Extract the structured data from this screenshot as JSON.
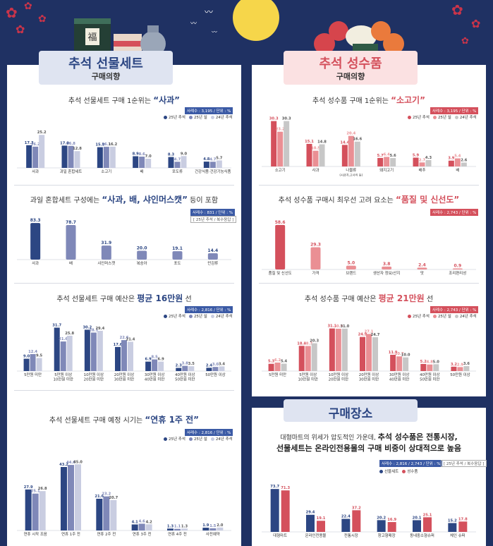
{
  "colors": {
    "navy": "#2c4683",
    "mid": "#7f88b8",
    "light": "#c9cde1",
    "red": "#d4505c",
    "pink": "#ea8f94",
    "lightgray": "#c7c7c7",
    "badge_blue": "#3b5aa5",
    "badge_red": "#d4505c"
  },
  "headers": {
    "gift": {
      "title_a": "추석",
      "title_b": "선물세트",
      "sub": "구매의향"
    },
    "goods": {
      "title_a": "추석",
      "title_b": "성수품",
      "sub": "구매의향"
    },
    "place": {
      "title": "구매장소"
    }
  },
  "sections": {
    "s1": {
      "pre": "추석 선물세트 구매 1순위는 ",
      "hi": "“사과”",
      "post": "",
      "meta": "사례수 : 3,195 / 단위 : %"
    },
    "s2": {
      "pre": "과일 혼합세트 구성에는 ",
      "hi": "“사과, 배, 샤인머스캣”",
      "post": " 등이 포함",
      "meta": "사례수 : 831 / 단위 : %",
      "note": "[ 25년 추석 / 복수응답 ]"
    },
    "s3": {
      "pre": "추석 선물세트 구매 예산은 ",
      "hi": "평균 16만원",
      "post": " 선",
      "meta": "사례수 : 2,816 / 단위 : %"
    },
    "s4": {
      "pre": "추석 선물세트 구매 예정 시기는 ",
      "hi": "“연휴 1주 전”",
      "post": "",
      "meta": "사례수 : 2,816 / 단위 : %"
    },
    "r1": {
      "pre": "추석 성수품 구매 1순위는 ",
      "hi": "“소고기”",
      "post": "",
      "meta": "사례수 : 3,195 / 단위 : %"
    },
    "r2": {
      "pre": "추석 성수품 구매시 최우선 고려 요소는 ",
      "hi": "“품질 및 신선도”",
      "post": "",
      "meta": "사례수 : 2,743 / 단위 : %"
    },
    "r3": {
      "pre": "추석 성수품 구매 예산은 ",
      "hi": "평균 21만원",
      "post": " 선",
      "meta": "사례수 : 2,743 / 단위 : %"
    },
    "p1": {
      "line1_pre": "대형마트의 위세가 압도적인 가운데, ",
      "line1_hi": "추석 성수품은 전통시장,",
      "line2": "선물세트는 온라인전용몰의 구매 비중이 상대적으로 높음",
      "meta": "사례수 : 2,816 / 2,743 / 단위 : %",
      "note": "[ 25년 추석 / 복수응답 ]"
    }
  },
  "legends": {
    "three": [
      "25년 추석",
      "25년 설",
      "24년 추석"
    ],
    "place": [
      "선물세트",
      "성수품"
    ]
  },
  "chart_data": [
    {
      "id": "s1",
      "type": "bar",
      "categories": [
        "사과",
        "과일 혼합세트",
        "소고기",
        "배",
        "포도류",
        "건강식품·건강기능식품"
      ],
      "series": [
        {
          "name": "25년 추석",
          "values": [
            17.3,
            17.0,
            15.8,
            8.9,
            8.3,
            4.8
          ]
        },
        {
          "name": "25년 설",
          "values": [
            16.2,
            16.8,
            16.1,
            8.6,
            4.7,
            4.7
          ]
        },
        {
          "name": "24년 추석",
          "values": [
            25.2,
            12.8,
            16.2,
            7.0,
            9.0,
            5.7
          ]
        }
      ]
    },
    {
      "id": "s2",
      "type": "bar",
      "categories": [
        "사과",
        "배",
        "샤인머스캣",
        "복숭아",
        "포도",
        "만감류"
      ],
      "values": [
        83.3,
        78.7,
        31.9,
        20.0,
        19.1,
        14.4
      ]
    },
    {
      "id": "s3",
      "type": "bar",
      "categories": [
        [
          "5만원 미만"
        ],
        [
          "5만원 이상",
          "10만원 미만"
        ],
        [
          "10만원 이상",
          "20만원 미만"
        ],
        [
          "20만원 이상",
          "30만원 미만"
        ],
        [
          "30만원 이상",
          "40만원 미만"
        ],
        [
          "40만원 이상",
          "50만원 미만"
        ],
        [
          "50만원 이상"
        ]
      ],
      "series": [
        {
          "name": "25년 추석",
          "values": [
            9.0,
            31.7,
            30.2,
            17.6,
            6.9,
            2.3,
            2.4
          ]
        },
        {
          "name": "25년 설",
          "values": [
            12.4,
            21.6,
            28.1,
            22.6,
            8.5,
            3.8,
            3.0
          ]
        },
        {
          "name": "24년 추석",
          "values": [
            9.5,
            25.8,
            29.4,
            21.4,
            6.9,
            3.5,
            3.4
          ]
        }
      ]
    },
    {
      "id": "s4",
      "type": "bar",
      "categories": [
        "연휴 시작 조음",
        "연휴 1주 전",
        "연휴 2주 전",
        "연휴 3주 전",
        "연휴 4주 전",
        "사전예약"
      ],
      "series": [
        {
          "name": "25년 추석",
          "values": [
            27.9,
            43.2,
            21.6,
            4.1,
            1.3,
            1.9
          ]
        },
        {
          "name": "25년 설",
          "values": [
            25.1,
            44.6,
            23.2,
            4.6,
            1.1,
            1.5
          ]
        },
        {
          "name": "24년 추석",
          "values": [
            26.8,
            45.0,
            20.7,
            4.2,
            1.3,
            2.0
          ]
        }
      ]
    },
    {
      "id": "r1",
      "type": "bar",
      "categories": [
        [
          "소고기"
        ],
        [
          "사과"
        ],
        [
          "나물류",
          "(시금치,고사리 등)"
        ],
        [
          "돼지고기"
        ],
        [
          "배추"
        ],
        [
          "배"
        ]
      ],
      "series": [
        {
          "name": "25년 추석",
          "values": [
            30.3,
            15.1,
            14.4,
            5.7,
            5.9,
            3.9
          ]
        },
        {
          "name": "25년 설",
          "values": [
            23.2,
            10.5,
            20.4,
            6.4,
            2.7,
            5.4
          ]
        },
        {
          "name": "24년 추석",
          "values": [
            30.3,
            14.8,
            16.6,
            5.6,
            4.3,
            2.6
          ]
        }
      ]
    },
    {
      "id": "r2",
      "type": "bar",
      "categories": [
        "품질 및 신선도",
        "가격",
        "브랜드",
        "생산자 정보/산지",
        "맛",
        "조리편리성"
      ],
      "values": [
        58.6,
        29.3,
        5.0,
        3.8,
        2.4,
        0.9
      ]
    },
    {
      "id": "r3",
      "type": "bar",
      "categories": [
        [
          "5만원 미만"
        ],
        [
          "5만원 이상",
          "10만원 미만"
        ],
        [
          "10만원 이상",
          "20만원 미만"
        ],
        [
          "20만원 이상",
          "30만원 미만"
        ],
        [
          "30만원 이상",
          "40만원 미만"
        ],
        [
          "40만원 이상",
          "50만원 미만"
        ],
        [
          "50만원 이상"
        ]
      ],
      "series": [
        {
          "name": "25년 추석",
          "values": [
            5.3,
            18.4,
            31.1,
            24.9,
            11.9,
            5.2,
            3.2
          ]
        },
        {
          "name": "25년 설",
          "values": [
            6.2,
            18.3,
            30.9,
            27.1,
            10.7,
            4.8,
            2.9
          ]
        },
        {
          "name": "24년 추석",
          "values": [
            5.4,
            20.3,
            31.0,
            24.7,
            10.0,
            5.0,
            3.6
          ]
        }
      ]
    },
    {
      "id": "p1",
      "type": "bar",
      "categories": [
        "대형마트",
        "온라인전용몰",
        "전통시장",
        "창고형매장",
        "동네중소형슈퍼",
        "체인 슈퍼"
      ],
      "series": [
        {
          "name": "선물세트",
          "values": [
            73.7,
            29.4,
            22.4,
            20.2,
            20.1,
            15.2
          ]
        },
        {
          "name": "성수품",
          "values": [
            71.3,
            19.1,
            37.2,
            16.9,
            25.1,
            17.8
          ]
        }
      ]
    }
  ]
}
